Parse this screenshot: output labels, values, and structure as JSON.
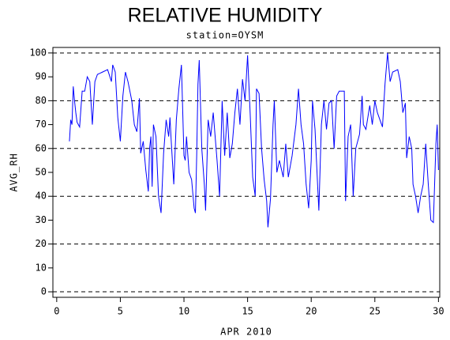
{
  "chart_data": {
    "type": "line",
    "title": "RELATIVE HUMIDITY",
    "subtitle": "station=OYSM",
    "y_label": "AVG_RH",
    "x_label": "APR 2010",
    "color": "#0000ff",
    "grid": true,
    "xlim": [
      -0.3,
      30.1
    ],
    "ylim": [
      -2.3,
      102.3
    ],
    "xticks": [
      0,
      5,
      10,
      15,
      20,
      25,
      30
    ],
    "yticks": [
      0,
      10,
      20,
      30,
      40,
      50,
      60,
      70,
      80,
      90,
      100
    ],
    "x": [
      1.0,
      1.1,
      1.2,
      1.3,
      1.4,
      1.5,
      1.6,
      1.8,
      2.0,
      2.2,
      2.4,
      2.6,
      2.8,
      3.0,
      3.2,
      3.6,
      4.0,
      4.3,
      4.4,
      4.6,
      4.8,
      5.0,
      5.2,
      5.4,
      5.6,
      5.9,
      6.1,
      6.3,
      6.5,
      6.6,
      6.8,
      7.0,
      7.2,
      7.3,
      7.4,
      7.5,
      7.6,
      7.8,
      8.0,
      8.2,
      8.4,
      8.6,
      8.8,
      8.9,
      9.0,
      9.2,
      9.4,
      9.6,
      9.8,
      10.0,
      10.1,
      10.2,
      10.4,
      10.6,
      10.8,
      10.9,
      11.0,
      11.1,
      11.2,
      11.4,
      11.6,
      11.7,
      11.9,
      12.1,
      12.3,
      12.6,
      12.8,
      13.0,
      13.2,
      13.4,
      13.6,
      13.8,
      14.0,
      14.2,
      14.4,
      14.6,
      14.8,
      15.0,
      15.2,
      15.4,
      15.6,
      15.7,
      15.9,
      16.1,
      16.3,
      16.5,
      16.6,
      16.8,
      17.0,
      17.1,
      17.3,
      17.5,
      17.8,
      18.0,
      18.2,
      18.5,
      18.8,
      19.0,
      19.2,
      19.4,
      19.6,
      19.8,
      20.0,
      20.1,
      20.3,
      20.5,
      20.6,
      20.8,
      21.0,
      21.2,
      21.4,
      21.6,
      21.8,
      22.0,
      22.2,
      22.6,
      22.7,
      22.9,
      23.1,
      23.3,
      23.5,
      23.8,
      24.0,
      24.1,
      24.3,
      24.6,
      24.8,
      25.0,
      25.2,
      25.4,
      25.6,
      25.8,
      26.0,
      26.2,
      26.4,
      26.8,
      27.0,
      27.2,
      27.4,
      27.5,
      27.7,
      27.9,
      28.0,
      28.2,
      28.4,
      28.6,
      28.8,
      29.0,
      29.2,
      29.4,
      29.6,
      29.8,
      29.9,
      30.0
    ],
    "values": [
      63,
      72,
      70,
      86,
      80,
      75,
      71,
      69,
      84,
      84,
      90,
      88,
      70,
      88,
      91,
      92,
      93,
      88,
      95,
      92,
      73,
      63,
      82,
      92,
      88,
      80,
      70,
      67,
      81,
      58,
      63,
      51,
      42,
      60,
      65,
      44,
      70,
      65,
      40,
      33,
      58,
      72,
      65,
      73,
      63,
      45,
      72,
      85,
      95,
      57,
      55,
      65,
      50,
      47,
      35,
      33,
      57,
      87,
      97,
      60,
      45,
      34,
      72,
      65,
      75,
      55,
      40,
      80,
      57,
      75,
      56,
      62,
      75,
      85,
      70,
      89,
      80,
      99,
      75,
      48,
      40,
      85,
      83,
      60,
      47,
      38,
      27,
      39,
      70,
      80,
      50,
      55,
      48,
      62,
      48,
      57,
      70,
      85,
      70,
      62,
      45,
      35,
      55,
      80,
      68,
      45,
      34,
      70,
      80,
      68,
      79,
      80,
      60,
      82,
      84,
      84,
      38,
      65,
      70,
      40,
      60,
      66,
      82,
      70,
      68,
      78,
      70,
      80,
      75,
      72,
      69,
      87,
      100,
      88,
      92,
      93,
      88,
      75,
      79,
      56,
      65,
      60,
      45,
      40,
      33,
      40,
      45,
      62,
      45,
      30,
      29,
      62,
      70,
      51
    ]
  }
}
